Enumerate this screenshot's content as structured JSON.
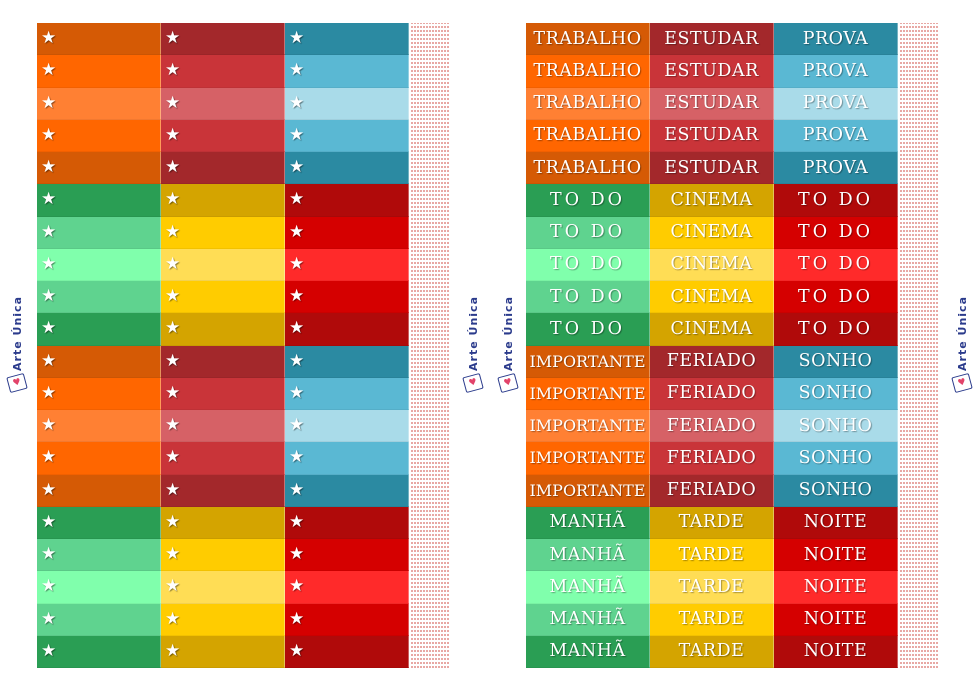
{
  "brand": {
    "text": "Arte Única",
    "heart": "♥"
  },
  "star_glyph": "★",
  "colors": {
    "orange": [
      "#d55a05",
      "#ff6600",
      "#ff8033",
      "#ff6600",
      "#d55a05"
    ],
    "red": [
      "#a3282b",
      "#c93439",
      "#d66166",
      "#c93439",
      "#a3282b"
    ],
    "blue": [
      "#2b8aa2",
      "#5ab8d3",
      "#a9dbe9",
      "#5ab8d3",
      "#2b8aa2"
    ],
    "green": [
      "#2a9e54",
      "#5fd38f",
      "#80ffac",
      "#5fd38f",
      "#2a9e54"
    ],
    "yellow": [
      "#d4a400",
      "#ffcc00",
      "#ffdd55",
      "#ffcc00",
      "#d4a400"
    ],
    "crimson": [
      "#b00a0a",
      "#d50000",
      "#ff2a2a",
      "#d50000",
      "#b00a0a"
    ]
  },
  "left_sheet": {
    "groups": [
      {
        "columns": [
          "orange",
          "red",
          "blue"
        ]
      },
      {
        "columns": [
          "green",
          "yellow",
          "crimson"
        ]
      },
      {
        "columns": [
          "orange",
          "red",
          "blue"
        ]
      },
      {
        "columns": [
          "green",
          "yellow",
          "crimson"
        ]
      }
    ]
  },
  "right_sheet": {
    "groups": [
      {
        "columns": [
          "orange",
          "red",
          "blue"
        ],
        "labels": [
          "TRABALHO",
          "ESTUDAR",
          "PROVA"
        ]
      },
      {
        "columns": [
          "green",
          "yellow",
          "crimson"
        ],
        "labels": [
          "TO DO",
          "CINEMA",
          "TO DO"
        ]
      },
      {
        "columns": [
          "orange",
          "red",
          "blue"
        ],
        "labels": [
          "IMPORTANTE",
          "FERIADO",
          "SONHO"
        ]
      },
      {
        "columns": [
          "green",
          "yellow",
          "crimson"
        ],
        "labels": [
          "MANHÃ",
          "TARDE",
          "NOITE"
        ]
      }
    ]
  }
}
